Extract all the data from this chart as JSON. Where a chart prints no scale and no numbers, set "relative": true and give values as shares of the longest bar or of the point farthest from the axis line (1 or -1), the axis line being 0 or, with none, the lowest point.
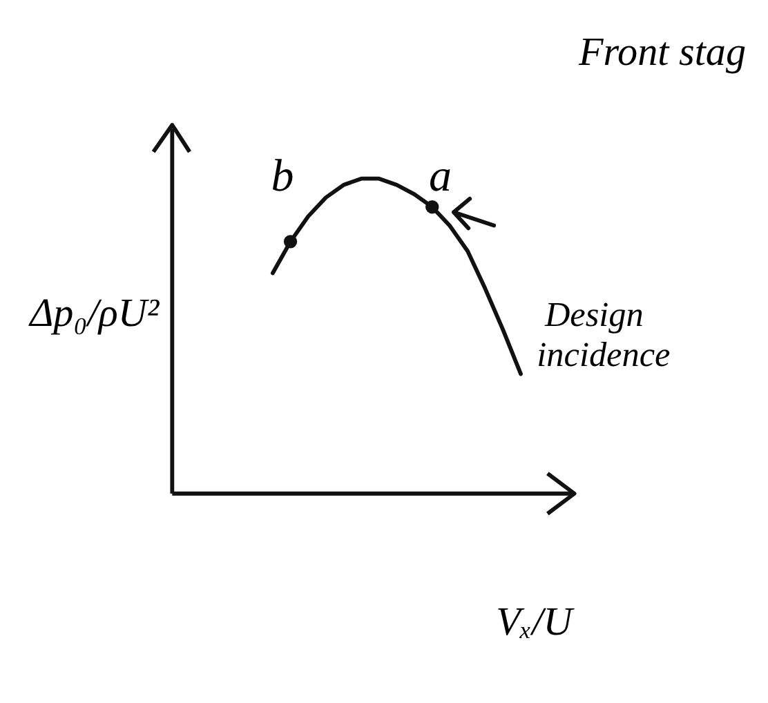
{
  "chart_data": {
    "type": "line",
    "title": "Front stag",
    "xlabel": "Vₓ/U",
    "ylabel": "Δp₀/ρU²",
    "relative": true,
    "categories": [
      null,
      null,
      null,
      null,
      null,
      null,
      null,
      null,
      null,
      null,
      null,
      null,
      null,
      null,
      null
    ],
    "series": [
      {
        "color": "#111111",
        "values": [
          0.7,
          0.8,
          0.88,
          0.94,
          0.98,
          1.0,
          1.0,
          0.98,
          0.95,
          0.91,
          0.85,
          0.77,
          0.65,
          0.52,
          0.38
        ]
      }
    ],
    "annotations": [
      {
        "text": "b",
        "y": 0.8
      },
      {
        "text": "a",
        "y": 0.91
      },
      "Design incidence"
    ]
  }
}
